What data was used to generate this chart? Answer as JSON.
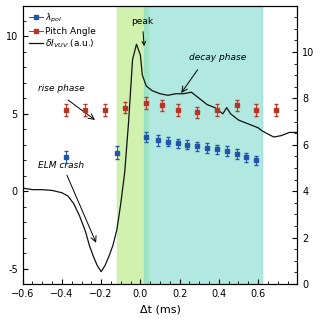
{
  "xlim": [
    -0.6,
    0.8
  ],
  "ylim_left": [
    -6.0,
    12.0
  ],
  "ylim_right": [
    0.0,
    12.0
  ],
  "xlabel": "Δt (ms)",
  "green_shade": [
    -0.12,
    0.04
  ],
  "teal_shade": [
    0.02,
    0.62
  ],
  "blue_x": [
    -0.38,
    -0.12,
    0.03,
    0.09,
    0.14,
    0.19,
    0.24,
    0.29,
    0.34,
    0.39,
    0.44,
    0.49,
    0.54,
    0.59
  ],
  "blue_y": [
    2.2,
    2.5,
    3.5,
    3.3,
    3.2,
    3.1,
    3.0,
    2.9,
    2.8,
    2.7,
    2.6,
    2.4,
    2.2,
    2.0
  ],
  "blue_yerr": [
    0.4,
    0.4,
    0.35,
    0.35,
    0.3,
    0.3,
    0.3,
    0.3,
    0.3,
    0.3,
    0.3,
    0.3,
    0.3,
    0.3
  ],
  "red_x": [
    -0.38,
    -0.28,
    -0.18,
    -0.08,
    0.03,
    0.11,
    0.19,
    0.29,
    0.39,
    0.49,
    0.59,
    0.69
  ],
  "red_y": [
    7.5,
    7.5,
    7.5,
    7.6,
    7.8,
    7.7,
    7.5,
    7.4,
    7.5,
    7.7,
    7.5,
    7.5
  ],
  "red_yerr": [
    0.25,
    0.25,
    0.25,
    0.25,
    0.25,
    0.25,
    0.25,
    0.25,
    0.25,
    0.25,
    0.25,
    0.25
  ],
  "black_x": [
    -0.6,
    -0.55,
    -0.5,
    -0.45,
    -0.4,
    -0.37,
    -0.34,
    -0.31,
    -0.28,
    -0.26,
    -0.24,
    -0.22,
    -0.2,
    -0.18,
    -0.16,
    -0.14,
    -0.12,
    -0.1,
    -0.08,
    -0.06,
    -0.04,
    -0.02,
    0.0,
    0.01,
    0.03,
    0.06,
    0.1,
    0.14,
    0.18,
    0.22,
    0.26,
    0.28,
    0.3,
    0.32,
    0.34,
    0.36,
    0.38,
    0.4,
    0.42,
    0.44,
    0.46,
    0.48,
    0.5,
    0.52,
    0.54,
    0.56,
    0.58,
    0.6,
    0.62,
    0.65,
    0.68,
    0.72,
    0.76,
    0.8
  ],
  "black_y": [
    0.2,
    0.1,
    0.1,
    0.05,
    -0.1,
    -0.3,
    -0.8,
    -1.6,
    -2.6,
    -3.5,
    -4.2,
    -4.8,
    -5.2,
    -4.8,
    -4.2,
    -3.5,
    -2.5,
    -0.8,
    1.2,
    4.5,
    8.5,
    9.5,
    8.8,
    7.5,
    6.8,
    6.5,
    6.3,
    6.2,
    6.3,
    6.3,
    6.4,
    6.2,
    6.0,
    5.8,
    5.6,
    5.5,
    5.4,
    5.2,
    5.0,
    5.4,
    5.0,
    4.8,
    4.6,
    4.5,
    4.4,
    4.3,
    4.2,
    4.1,
    3.9,
    3.7,
    3.5,
    3.6,
    3.8,
    3.8
  ],
  "blue_color": "#2255aa",
  "red_color": "#bb3322",
  "black_color": "#111111",
  "green_color": "#c8f0a0",
  "teal_color": "#88ddd0",
  "yticks_left": [
    -5,
    0,
    5,
    10
  ],
  "ytick_labels_left": [
    "-5",
    "0",
    "5",
    "10"
  ],
  "yticks_right": [
    0,
    2,
    4,
    6,
    8,
    10
  ],
  "xticks": [
    -0.6,
    -0.4,
    -0.2,
    0.0,
    0.2,
    0.4,
    0.6
  ],
  "tick_fontsize": 7,
  "label_fontsize": 8,
  "legend_fontsize": 6.5
}
